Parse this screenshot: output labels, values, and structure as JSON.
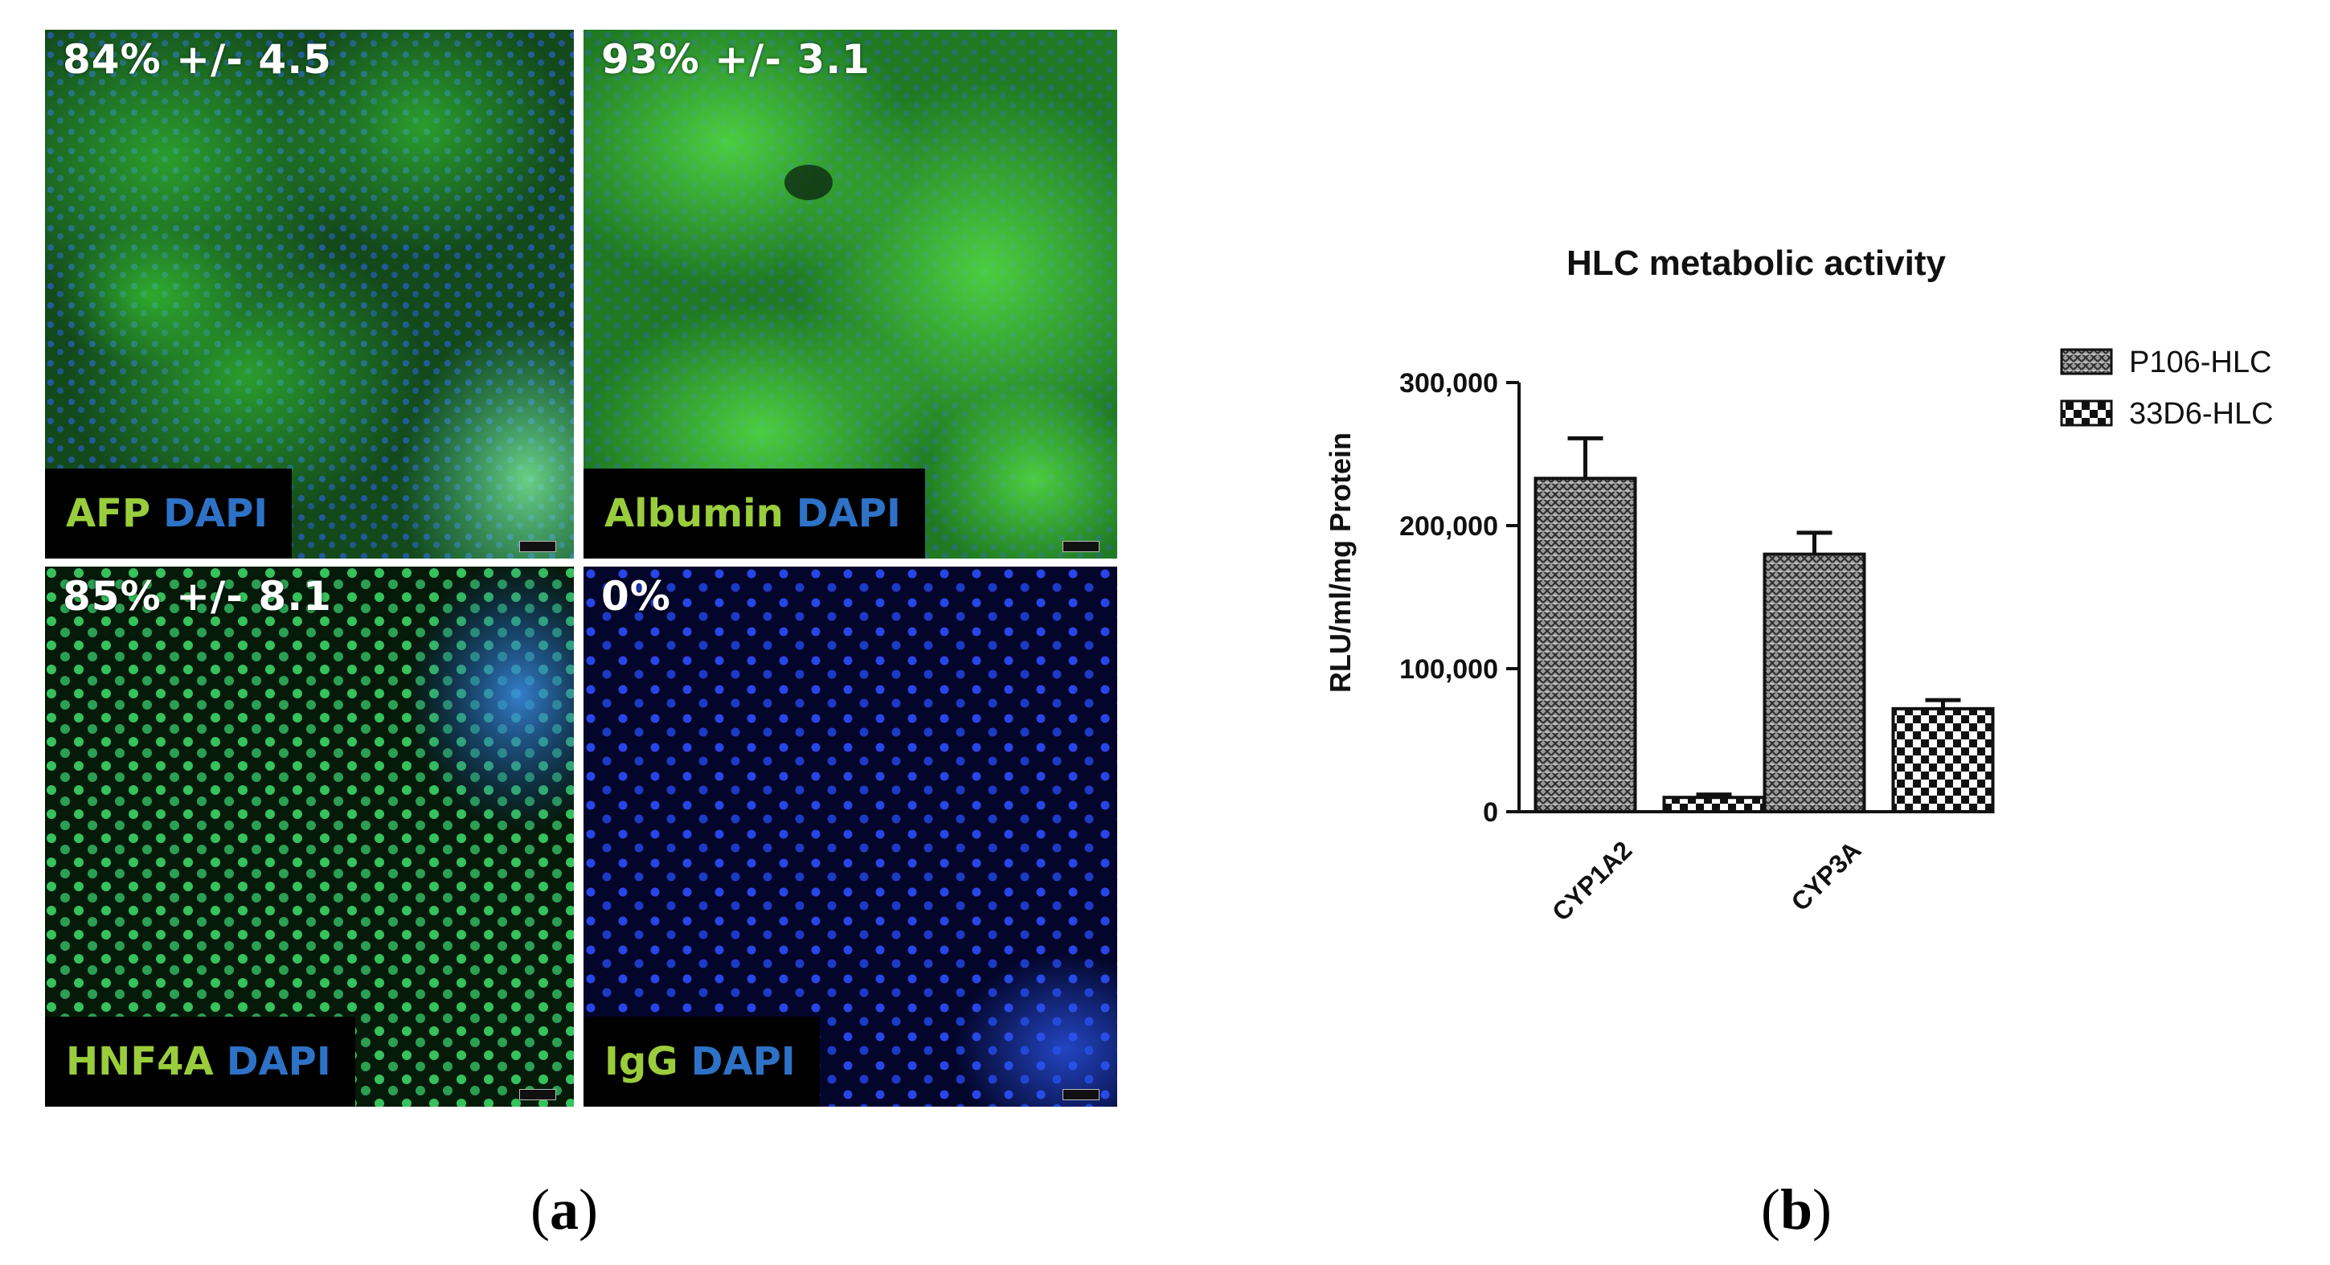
{
  "panel_a": {
    "label_open": "(",
    "label_letter": "a",
    "label_close": ")",
    "tiles": [
      {
        "percent_text": "84% +/- 4.5",
        "marker": "AFP",
        "counterstain": "DAPI"
      },
      {
        "percent_text": "93% +/- 3.1",
        "marker": "Albumin",
        "counterstain": "DAPI"
      },
      {
        "percent_text": "85% +/- 8.1",
        "marker": "HNF4A",
        "counterstain": "DAPI"
      },
      {
        "percent_text": "0%",
        "marker": "IgG",
        "counterstain": "DAPI"
      }
    ],
    "colors": {
      "marker_text": "#9acd3c",
      "dapi_text": "#2d72c6",
      "green_stain": "#2fb52b",
      "dapi_nuclei": "#1d3fd0"
    }
  },
  "panel_b": {
    "label_open": "(",
    "label_letter": "b",
    "label_close": ")"
  },
  "chart_data": {
    "type": "bar",
    "title": "HLC metabolic activity",
    "xlabel": "",
    "ylabel": "RLU/ml/mg Protein",
    "categories": [
      "CYP1A2",
      "CYP3A"
    ],
    "series": [
      {
        "name": "P106-HLC",
        "values": [
          233000,
          180000
        ],
        "errors": [
          28000,
          15000
        ],
        "pattern": "dense-hatch"
      },
      {
        "name": "33D6-HLC",
        "values": [
          10000,
          72000
        ],
        "errors": [
          2000,
          6000
        ],
        "pattern": "checkerboard"
      }
    ],
    "ylim": [
      0,
      300000
    ],
    "yticks": [
      0,
      100000,
      200000,
      300000
    ],
    "ytick_labels": [
      "0",
      "100,000",
      "200,000",
      "300,000"
    ],
    "legend_position": "top-right",
    "grid": false
  }
}
